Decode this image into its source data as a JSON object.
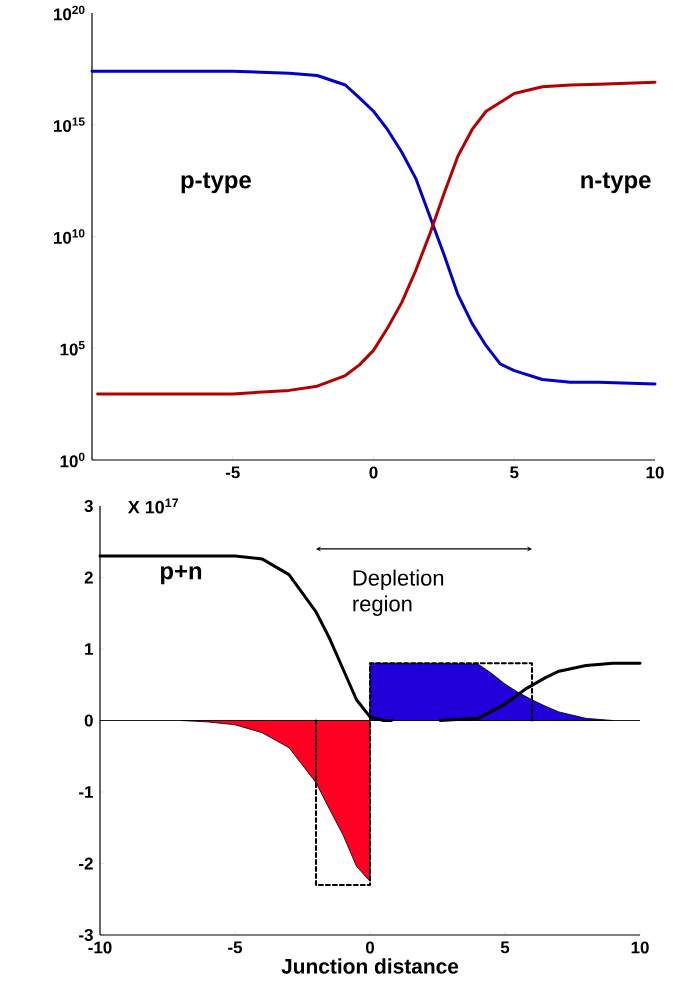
{
  "chart_data": [
    {
      "type": "line",
      "log": "y",
      "xlim": [
        -10,
        10
      ],
      "xticks": [
        -5,
        0,
        5,
        10
      ],
      "ylim": [
        1,
        1e+20
      ],
      "yticks": [
        {
          "value": 1,
          "label": "10$^{0}$"
        },
        {
          "value": 100000.0,
          "label": "10$^{5}$"
        },
        {
          "value": 10000000000.0,
          "label": "10$^{10}$"
        },
        {
          "value": 1000000000000000.0,
          "label": "10$^{15}$"
        },
        {
          "value": 1e+20,
          "label": "10$^{20}$"
        }
      ],
      "series": [
        {
          "color": "#0000c8",
          "x": [
            -10,
            -5,
            -3,
            -2,
            -1,
            -0.5,
            0,
            0.5,
            1,
            1.5,
            2,
            2.5,
            3,
            3.5,
            4,
            4.5,
            5,
            6,
            7,
            8,
            10
          ],
          "values": [
            2.5e+17,
            2.5e+17,
            2e+17,
            1.6e+17,
            6e+16,
            1.6e+16,
            4000000000000000.0,
            600000000000000.0,
            60000000000000.0,
            4000000000000.0,
            80000000000.0,
            1600000000.0,
            25000000.0,
            1300000.0,
            130000.0,
            20000.0,
            10000.0,
            4000.0,
            3000.0,
            3000.0,
            2500.0
          ]
        },
        {
          "color": "#b40000",
          "x": [
            -9.8,
            -5,
            -3,
            -2,
            -1,
            -0.5,
            0,
            0.5,
            1,
            1.5,
            2,
            2.5,
            3,
            3.5,
            4,
            4.5,
            5,
            6,
            7,
            8,
            10
          ],
          "values": [
            900,
            900,
            1300,
            2000,
            6000,
            18000.0,
            80000.0,
            800000.0,
            11000000.0,
            300000000.0,
            13000000000.0,
            800000000000.0,
            40000000000000.0,
            600000000000000.0,
            4000000000000000.0,
            1e+16,
            2.5e+16,
            5e+16,
            6e+16,
            6.5e+16,
            8e+16
          ]
        }
      ],
      "annotations": [
        "p-type",
        "n-type"
      ]
    },
    {
      "type": "line",
      "xlim": [
        -10,
        10
      ],
      "xticks": [
        -10,
        -5,
        0,
        5,
        10
      ],
      "ylim": [
        -3,
        3
      ],
      "yticks": [
        -3,
        -2,
        -1,
        0,
        1,
        2,
        3
      ],
      "xlabel": "Junction distance",
      "series": [
        {
          "type": "area",
          "color": "#ff0022",
          "x": [
            -7,
            -6,
            -5,
            -4,
            -3,
            -2,
            -1.5,
            -1,
            -0.5,
            0
          ],
          "values": [
            0,
            -0.02,
            -0.06,
            -0.17,
            -0.38,
            -0.87,
            -1.24,
            -1.6,
            -2.04,
            -2.25
          ]
        },
        {
          "type": "area",
          "color": "#1f00d9",
          "x": [
            0,
            2,
            4,
            4.5,
            5,
            5.5,
            6,
            6.5,
            7,
            8,
            9
          ],
          "values": [
            0.8,
            0.8,
            0.79,
            0.66,
            0.51,
            0.39,
            0.29,
            0.2,
            0.12,
            0.03,
            0
          ]
        },
        {
          "type": "line",
          "line_style": "dashed",
          "color": "#000000",
          "x": [
            -2,
            -2,
            0,
            0,
            6,
            6
          ],
          "values": [
            0,
            -2.3,
            -2.3,
            0.8,
            0.8,
            0
          ]
        },
        {
          "type": "line",
          "color": "#000000",
          "x": [
            -10,
            -5,
            -4,
            -3,
            -2,
            -1.5,
            -1,
            -0.5,
            0,
            0.5,
            0.8
          ],
          "values": [
            2.3,
            2.3,
            2.26,
            2.04,
            1.52,
            1.15,
            0.72,
            0.29,
            0.05,
            0,
            0
          ]
        },
        {
          "type": "line",
          "color": "#000000",
          "x": [
            2.6,
            4,
            5,
            5.8,
            6.5,
            7,
            8,
            9,
            10
          ],
          "values": [
            0,
            0.03,
            0.23,
            0.45,
            0.6,
            0.69,
            0.77,
            0.8,
            0.8
          ]
        }
      ],
      "ref_lines": [
        {
          "axis": "y",
          "value": 0,
          "color": "#000000"
        }
      ],
      "annotations": [
        "X 10$^{17}$",
        "p+n",
        "Depletion region"
      ]
    }
  ]
}
